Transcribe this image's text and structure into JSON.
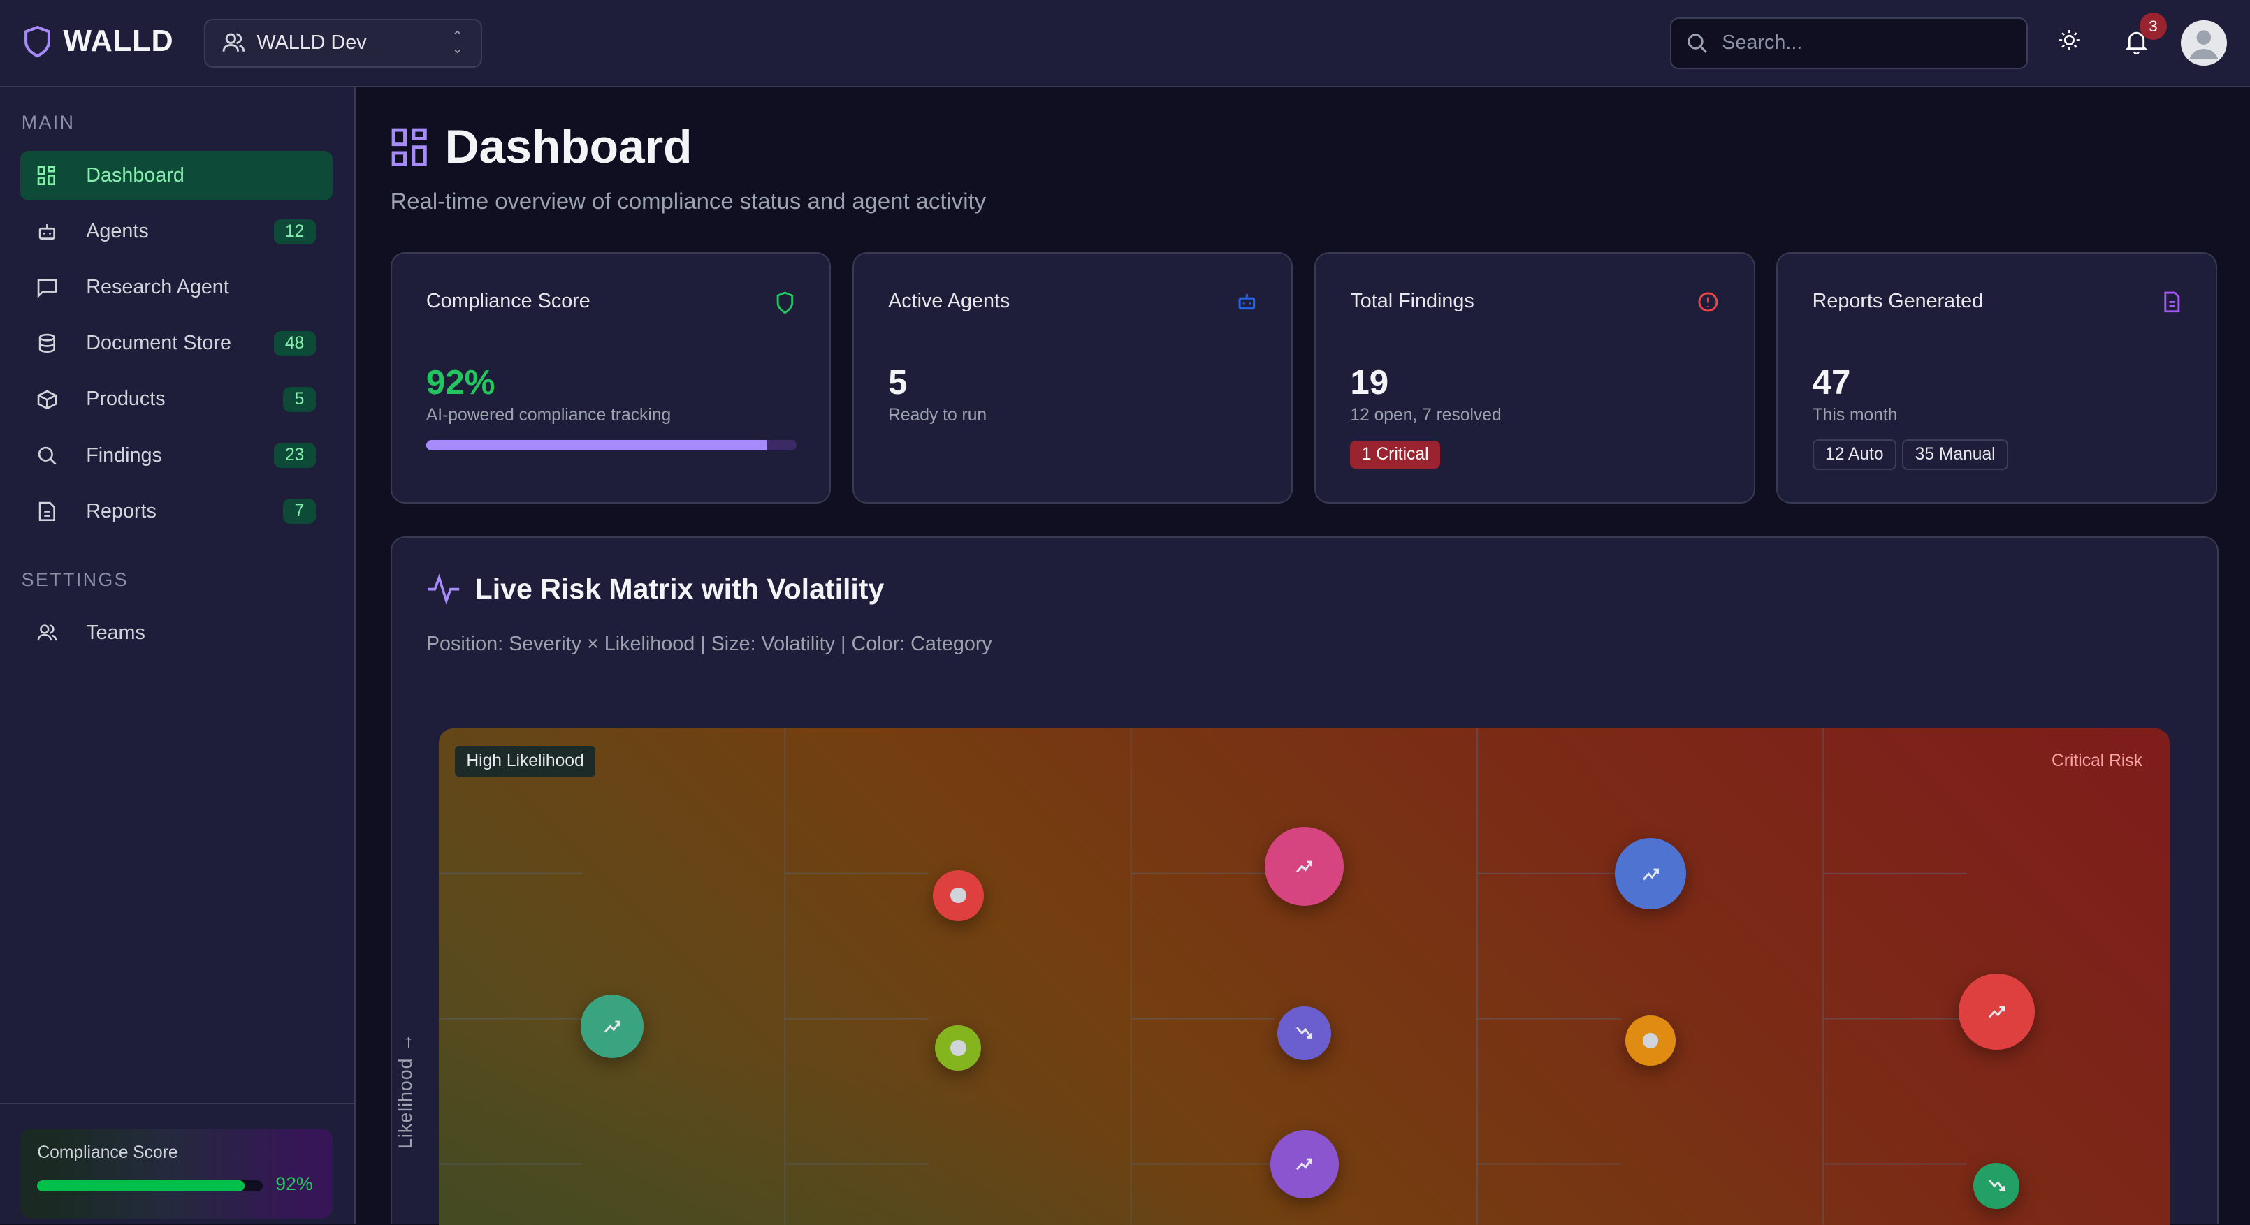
{
  "header": {
    "brand": "WALLD",
    "workspace": "WALLD Dev",
    "search_placeholder": "Search...",
    "notification_count": "3"
  },
  "sidebar": {
    "sections": [
      {
        "label": "MAIN"
      },
      {
        "label": "SETTINGS"
      }
    ],
    "items": [
      {
        "label": "Dashboard",
        "icon": "layout-grid-icon",
        "active": true
      },
      {
        "label": "Agents",
        "icon": "bot-icon",
        "count": "12"
      },
      {
        "label": "Research Agent",
        "icon": "message-square-icon"
      },
      {
        "label": "Document Store",
        "icon": "database-icon",
        "count": "48"
      },
      {
        "label": "Products",
        "icon": "package-icon",
        "count": "5"
      },
      {
        "label": "Findings",
        "icon": "search-icon",
        "count": "23"
      },
      {
        "label": "Reports",
        "icon": "file-text-icon",
        "count": "7"
      },
      {
        "label": "Teams",
        "icon": "users-icon"
      }
    ],
    "footer": {
      "label": "Compliance Score",
      "value": "92%",
      "percent": 92
    }
  },
  "page": {
    "title": "Dashboard",
    "subtitle": "Real-time overview of compliance status and agent activity"
  },
  "cards": [
    {
      "title": "Compliance Score",
      "value": "92%",
      "sub": "AI-powered compliance tracking",
      "progress": 92,
      "icon": "shield-icon",
      "color": "#22c55e"
    },
    {
      "title": "Active Agents",
      "value": "5",
      "sub": "Ready to run",
      "icon": "bot-icon",
      "color": "#2563eb"
    },
    {
      "title": "Total Findings",
      "value": "19",
      "sub": "12 open, 7 resolved",
      "tag": "1 Critical",
      "icon": "alert-circle-icon",
      "color": "#ef4444"
    },
    {
      "title": "Reports Generated",
      "value": "47",
      "sub": "This month",
      "tags": [
        "12 Auto",
        "35 Manual"
      ],
      "icon": "file-text-icon",
      "color": "#a855f7"
    }
  ],
  "risk": {
    "title": "Live Risk Matrix with Volatility",
    "subtitle": "Position: Severity × Likelihood | Size: Volatility | Color: Category",
    "y_label": "Likelihood →",
    "corner_labels": {
      "top_left": "High Likelihood",
      "top_right": "Critical Risk"
    }
  },
  "chart_data": {
    "type": "scatter",
    "x_field": "severity",
    "y_field": "likelihood",
    "size_field": "volatility",
    "xlim": [
      0.5,
      5.5
    ],
    "ylim": [
      0,
      5
    ],
    "grid": true,
    "points": [
      {
        "severity": 1,
        "likelihood": 2.95,
        "volatility": 0.55,
        "trend": "up",
        "color": "#3aa37f"
      },
      {
        "severity": 2,
        "likelihood": 3.85,
        "volatility": 0.3,
        "trend": "stable",
        "color": "#de4040"
      },
      {
        "severity": 2,
        "likelihood": 2.8,
        "volatility": 0.2,
        "trend": "stable",
        "color": "#84b51f"
      },
      {
        "severity": 3,
        "likelihood": 4.05,
        "volatility": 0.85,
        "trend": "up",
        "color": "#d6457f"
      },
      {
        "severity": 3,
        "likelihood": 2.9,
        "volatility": 0.35,
        "trend": "down",
        "color": "#6b5fcf"
      },
      {
        "severity": 3,
        "likelihood": 2.0,
        "volatility": 0.65,
        "trend": "up",
        "color": "#8a55cf"
      },
      {
        "severity": 4,
        "likelihood": 4.0,
        "volatility": 0.7,
        "trend": "up",
        "color": "#4f73d1"
      },
      {
        "severity": 4,
        "likelihood": 2.85,
        "volatility": 0.28,
        "trend": "stable",
        "color": "#e08b12"
      },
      {
        "severity": 5,
        "likelihood": 3.05,
        "volatility": 0.8,
        "trend": "up",
        "color": "#de4040"
      },
      {
        "severity": 5,
        "likelihood": 1.85,
        "volatility": 0.2,
        "trend": "down",
        "color": "#22a066"
      }
    ]
  }
}
